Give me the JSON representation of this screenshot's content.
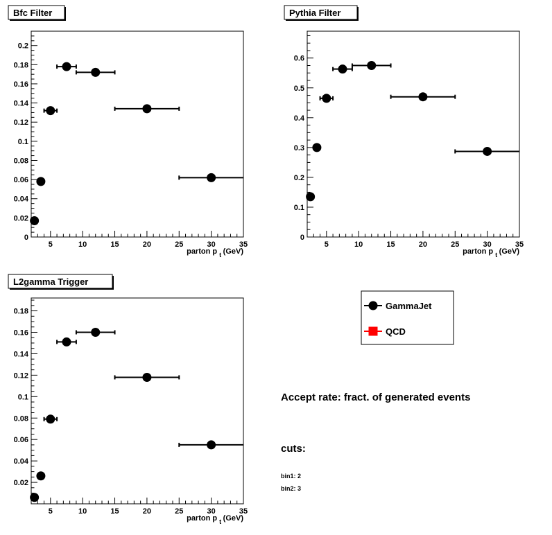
{
  "chart_data": [
    {
      "type": "scatter",
      "title": "Bfc Filter",
      "xlabel": "parton p",
      "xlabel_sub": "t",
      "xlabel_unit": "(GeV)",
      "xlim": [
        2,
        35
      ],
      "ylim": [
        0,
        0.215
      ],
      "xticks": [
        5,
        10,
        15,
        20,
        25,
        30,
        35
      ],
      "yticks": [
        0,
        0.02,
        0.04,
        0.06,
        0.08,
        0.1,
        0.12,
        0.14,
        0.16,
        0.18,
        0.2
      ],
      "yticklabels": [
        "0",
        "0.02",
        "0.04",
        "0.06",
        "0.08",
        "0.1",
        "0.12",
        "0.14",
        "0.16",
        "0.18",
        "0.2"
      ],
      "series": [
        {
          "name": "GammaJet",
          "points": [
            {
              "x": 2.5,
              "y": 0.017,
              "xlo": 2.5,
              "xhi": 2.5
            },
            {
              "x": 3.5,
              "y": 0.058,
              "xlo": 3.5,
              "xhi": 3.5
            },
            {
              "x": 5,
              "y": 0.132,
              "xlo": 4,
              "xhi": 6
            },
            {
              "x": 7.5,
              "y": 0.178,
              "xlo": 6,
              "xhi": 9
            },
            {
              "x": 12,
              "y": 0.172,
              "xlo": 9,
              "xhi": 15
            },
            {
              "x": 20,
              "y": 0.134,
              "xlo": 15,
              "xhi": 25
            },
            {
              "x": 30,
              "y": 0.062,
              "xlo": 25,
              "xhi": 35
            }
          ]
        }
      ]
    },
    {
      "type": "scatter",
      "title": "Pythia Filter",
      "xlabel": "parton p",
      "xlabel_sub": "t",
      "xlabel_unit": "(GeV)",
      "xlim": [
        2,
        35
      ],
      "ylim": [
        0,
        0.69
      ],
      "xticks": [
        5,
        10,
        15,
        20,
        25,
        30,
        35
      ],
      "yticks": [
        0,
        0.1,
        0.2,
        0.3,
        0.4,
        0.5,
        0.6
      ],
      "yticklabels": [
        "0",
        "0.1",
        "0.2",
        "0.3",
        "0.4",
        "0.5",
        "0.6"
      ],
      "series": [
        {
          "name": "GammaJet",
          "points": [
            {
              "x": 2.5,
              "y": 0.135,
              "xlo": 2.5,
              "xhi": 2.5
            },
            {
              "x": 3.5,
              "y": 0.3,
              "xlo": 3.5,
              "xhi": 3.5
            },
            {
              "x": 5,
              "y": 0.465,
              "xlo": 4,
              "xhi": 6
            },
            {
              "x": 7.5,
              "y": 0.563,
              "xlo": 6,
              "xhi": 9
            },
            {
              "x": 12,
              "y": 0.575,
              "xlo": 9,
              "xhi": 15
            },
            {
              "x": 20,
              "y": 0.47,
              "xlo": 15,
              "xhi": 25
            },
            {
              "x": 30,
              "y": 0.287,
              "xlo": 25,
              "xhi": 35
            }
          ]
        }
      ]
    },
    {
      "type": "scatter",
      "title": "L2gamma Trigger",
      "xlabel": "parton p",
      "xlabel_sub": "t",
      "xlabel_unit": "(GeV)",
      "xlim": [
        2,
        35
      ],
      "ylim": [
        0,
        0.192
      ],
      "xticks": [
        5,
        10,
        15,
        20,
        25,
        30,
        35
      ],
      "yticks": [
        0.02,
        0.04,
        0.06,
        0.08,
        0.1,
        0.12,
        0.14,
        0.16,
        0.18
      ],
      "yticklabels": [
        "0.02",
        "0.04",
        "0.06",
        "0.08",
        "0.1",
        "0.12",
        "0.14",
        "0.16",
        "0.18"
      ],
      "series": [
        {
          "name": "GammaJet",
          "points": [
            {
              "x": 2.5,
              "y": 0.006,
              "xlo": 2.5,
              "xhi": 2.5
            },
            {
              "x": 3.5,
              "y": 0.026,
              "xlo": 3.5,
              "xhi": 3.5
            },
            {
              "x": 5,
              "y": 0.079,
              "xlo": 4,
              "xhi": 6
            },
            {
              "x": 7.5,
              "y": 0.151,
              "xlo": 6,
              "xhi": 9
            },
            {
              "x": 12,
              "y": 0.16,
              "xlo": 9,
              "xhi": 15
            },
            {
              "x": 20,
              "y": 0.118,
              "xlo": 15,
              "xhi": 25
            },
            {
              "x": 30,
              "y": 0.055,
              "xlo": 25,
              "xhi": 35
            }
          ]
        }
      ]
    }
  ],
  "legend": [
    {
      "label": "GammaJet",
      "marker": "circle",
      "color": "#000000"
    },
    {
      "label": "QCD",
      "marker": "square",
      "color": "#ff0000"
    }
  ],
  "notes": {
    "heading": "Accept rate: fract. of generated events",
    "cuts_label": "cuts:",
    "bin1": "bin1: 2",
    "bin2": "bin2: 3"
  }
}
